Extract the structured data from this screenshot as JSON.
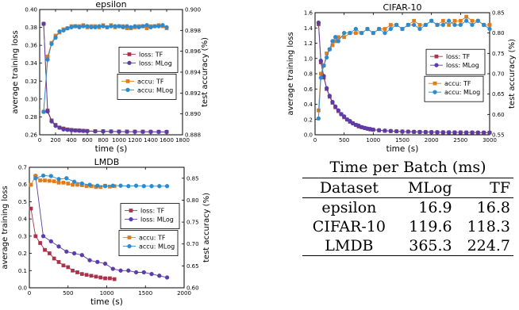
{
  "chart_data": [
    {
      "type": "line",
      "title": "epsilon",
      "xlabel": "time (s)",
      "ylabel": "average training loss",
      "y2label": "test accuracy (%)",
      "xlim": [
        0,
        1800
      ],
      "ylim": [
        0.26,
        0.4
      ],
      "y2lim": [
        0.888,
        0.9
      ],
      "xticks": [
        0,
        200,
        400,
        600,
        800,
        1000,
        1200,
        1400,
        1600,
        1800
      ],
      "yticks": [
        0.26,
        0.28,
        0.3,
        0.32,
        0.34,
        0.36,
        0.38,
        0.4
      ],
      "y2ticks": [
        0.888,
        0.89,
        0.892,
        0.894,
        0.896,
        0.898,
        0.9
      ],
      "ytick_labels": [
        "0.26",
        "0.28",
        "0.30",
        "0.32",
        "0.34",
        "0.36",
        "0.38",
        "0.40"
      ],
      "y2tick_labels": [
        "0.888",
        "0.890",
        "0.892",
        "0.894",
        "0.896",
        "0.898",
        "0.900"
      ],
      "legend_loss": "right",
      "legend_accu": "right",
      "series": [
        {
          "name": "loss: TF",
          "axis": "left",
          "color": "#a8334a",
          "marker": "square",
          "x": [
            50,
            100,
            150,
            200,
            250,
            300,
            350,
            400,
            450,
            500,
            550,
            600,
            700,
            800,
            900,
            1000,
            1100,
            1200,
            1300,
            1400,
            1500,
            1600
          ],
          "y": [
            0.384,
            0.287,
            0.276,
            0.271,
            0.268,
            0.267,
            0.266,
            0.2655,
            0.265,
            0.2648,
            0.2645,
            0.2643,
            0.264,
            0.264,
            0.2638,
            0.2637,
            0.2636,
            0.2635,
            0.2635,
            0.2634,
            0.2634,
            0.2633
          ]
        },
        {
          "name": "loss: MLog",
          "axis": "left",
          "color": "#5a3da8",
          "marker": "circle",
          "x": [
            50,
            100,
            150,
            200,
            250,
            300,
            350,
            400,
            450,
            500,
            550,
            600,
            700,
            800,
            900,
            1000,
            1100,
            1200,
            1300,
            1400,
            1500,
            1600
          ],
          "y": [
            0.384,
            0.286,
            0.275,
            0.27,
            0.268,
            0.266,
            0.2655,
            0.265,
            0.2648,
            0.2645,
            0.2643,
            0.264,
            0.2638,
            0.2637,
            0.2636,
            0.2635,
            0.2634,
            0.2634,
            0.2633,
            0.2633,
            0.2632,
            0.2632
          ]
        },
        {
          "name": "accu: TF",
          "axis": "right",
          "color": "#e07b1a",
          "marker": "square",
          "x": [
            50,
            100,
            150,
            200,
            250,
            300,
            350,
            400,
            450,
            500,
            550,
            600,
            650,
            700,
            750,
            800,
            850,
            900,
            950,
            1000,
            1050,
            1100,
            1150,
            1200,
            1250,
            1300,
            1350,
            1400,
            1450,
            1500,
            1550,
            1600
          ],
          "y": [
            0.8902,
            0.8955,
            0.8968,
            0.8975,
            0.8978,
            0.8981,
            0.8982,
            0.8984,
            0.8984,
            0.8984,
            0.8985,
            0.8983,
            0.8984,
            0.8984,
            0.8983,
            0.8985,
            0.8983,
            0.8985,
            0.8983,
            0.8984,
            0.8984,
            0.8982,
            0.8982,
            0.8983,
            0.8984,
            0.8984,
            0.8982,
            0.8984,
            0.8984,
            0.8985,
            0.8984,
            0.8982
          ]
        },
        {
          "name": "accu: MLog",
          "axis": "right",
          "color": "#2b8ad0",
          "marker": "circle",
          "x": [
            50,
            100,
            150,
            200,
            250,
            300,
            350,
            400,
            450,
            500,
            550,
            600,
            650,
            700,
            750,
            800,
            850,
            900,
            950,
            1000,
            1050,
            1100,
            1150,
            1200,
            1250,
            1300,
            1350,
            1400,
            1450,
            1500,
            1550,
            1600
          ],
          "y": [
            0.8902,
            0.8952,
            0.8967,
            0.8973,
            0.8979,
            0.898,
            0.8982,
            0.8983,
            0.8984,
            0.8983,
            0.8984,
            0.8984,
            0.8983,
            0.8983,
            0.8984,
            0.8984,
            0.8983,
            0.8984,
            0.8984,
            0.8984,
            0.8983,
            0.8984,
            0.8983,
            0.8984,
            0.8983,
            0.8984,
            0.8985,
            0.8983,
            0.8984,
            0.8984,
            0.8985,
            0.8983
          ]
        }
      ]
    },
    {
      "type": "line",
      "title": "CIFAR-10",
      "xlabel": "time (s)",
      "ylabel": "average training loss",
      "y2label": "test accuracy (%)",
      "xlim": [
        0,
        3000
      ],
      "ylim": [
        0.0,
        1.6
      ],
      "y2lim": [
        0.55,
        0.85
      ],
      "xticks": [
        0,
        500,
        1000,
        1500,
        2000,
        2500,
        3000
      ],
      "yticks": [
        0.0,
        0.2,
        0.4,
        0.6,
        0.8,
        1.0,
        1.2,
        1.4,
        1.6
      ],
      "y2ticks": [
        0.55,
        0.6,
        0.65,
        0.7,
        0.75,
        0.8,
        0.85
      ],
      "ytick_labels": [
        "0.0",
        "0.2",
        "0.4",
        "0.6",
        "0.8",
        "1.0",
        "1.2",
        "1.4",
        "1.6"
      ],
      "y2tick_labels": [
        "0.55",
        "0.60",
        "0.65",
        "0.70",
        "0.75",
        "0.80",
        "0.85"
      ],
      "legend_loss": "right",
      "legend_accu": "right",
      "series": [
        {
          "name": "loss: TF",
          "axis": "left",
          "color": "#a8334a",
          "marker": "square",
          "x": [
            60,
            100,
            150,
            200,
            250,
            300,
            350,
            400,
            450,
            500,
            550,
            600,
            650,
            700,
            750,
            800,
            850,
            900,
            950,
            1000,
            1100,
            1200,
            1300,
            1400,
            1500,
            1600,
            1700,
            1800,
            1900,
            2000,
            2100,
            2200,
            2300,
            2400,
            2500,
            2600,
            2700,
            2800,
            2900,
            3000
          ],
          "y": [
            1.45,
            0.95,
            0.75,
            0.6,
            0.5,
            0.42,
            0.36,
            0.31,
            0.27,
            0.23,
            0.2,
            0.17,
            0.15,
            0.13,
            0.11,
            0.1,
            0.09,
            0.08,
            0.07,
            0.065,
            0.058,
            0.052,
            0.048,
            0.045,
            0.042,
            0.04,
            0.038,
            0.036,
            0.035,
            0.034,
            0.033,
            0.032,
            0.031,
            0.03,
            0.03,
            0.029,
            0.029,
            0.028,
            0.028,
            0.028
          ]
        },
        {
          "name": "loss: MLog",
          "axis": "left",
          "color": "#5a3da8",
          "marker": "circle",
          "x": [
            60,
            100,
            150,
            200,
            250,
            300,
            350,
            400,
            450,
            500,
            550,
            600,
            650,
            700,
            750,
            800,
            850,
            900,
            950,
            1000,
            1100,
            1200,
            1300,
            1400,
            1500,
            1600,
            1700,
            1800,
            1900,
            2000,
            2100,
            2200,
            2300,
            2400,
            2500,
            2600,
            2700,
            2800,
            2900,
            3000
          ],
          "y": [
            1.47,
            0.97,
            0.77,
            0.61,
            0.51,
            0.43,
            0.37,
            0.32,
            0.27,
            0.24,
            0.2,
            0.18,
            0.15,
            0.13,
            0.12,
            0.1,
            0.09,
            0.08,
            0.075,
            0.067,
            0.06,
            0.054,
            0.05,
            0.046,
            0.043,
            0.041,
            0.039,
            0.037,
            0.036,
            0.035,
            0.034,
            0.033,
            0.032,
            0.031,
            0.031,
            0.03,
            0.03,
            0.029,
            0.029,
            0.029
          ]
        },
        {
          "name": "accu: TF",
          "axis": "right",
          "color": "#e07b1a",
          "marker": "square",
          "x": [
            60,
            100,
            150,
            200,
            250,
            300,
            350,
            400,
            500,
            600,
            700,
            800,
            900,
            1000,
            1100,
            1200,
            1300,
            1400,
            1500,
            1600,
            1700,
            1800,
            1900,
            2000,
            2100,
            2200,
            2300,
            2400,
            2500,
            2600,
            2700,
            2800,
            2900,
            3000
          ],
          "y": [
            0.61,
            0.7,
            0.72,
            0.75,
            0.76,
            0.77,
            0.78,
            0.79,
            0.79,
            0.8,
            0.8,
            0.8,
            0.81,
            0.8,
            0.81,
            0.81,
            0.82,
            0.82,
            0.81,
            0.82,
            0.83,
            0.82,
            0.82,
            0.83,
            0.82,
            0.83,
            0.82,
            0.83,
            0.83,
            0.84,
            0.83,
            0.83,
            0.82,
            0.82
          ]
        },
        {
          "name": "accu: MLog",
          "axis": "right",
          "color": "#2b8ad0",
          "marker": "circle",
          "x": [
            60,
            100,
            150,
            200,
            250,
            300,
            350,
            400,
            500,
            600,
            700,
            800,
            900,
            1000,
            1100,
            1200,
            1300,
            1400,
            1500,
            1600,
            1700,
            1800,
            1900,
            2000,
            2100,
            2200,
            2300,
            2400,
            2500,
            2600,
            2700,
            2800,
            2900,
            3000
          ],
          "y": [
            0.59,
            0.69,
            0.72,
            0.74,
            0.76,
            0.78,
            0.79,
            0.78,
            0.8,
            0.8,
            0.81,
            0.8,
            0.81,
            0.8,
            0.81,
            0.8,
            0.81,
            0.82,
            0.81,
            0.82,
            0.82,
            0.81,
            0.82,
            0.83,
            0.82,
            0.82,
            0.83,
            0.82,
            0.82,
            0.83,
            0.82,
            0.83,
            0.82,
            0.81
          ]
        }
      ]
    },
    {
      "type": "line",
      "title": "LMDB",
      "xlabel": "time (s)",
      "ylabel": "average training loss",
      "y2label": "test accuracy (%)",
      "xlim": [
        0,
        2000
      ],
      "ylim": [
        0.0,
        0.7
      ],
      "y2lim": [
        0.6,
        0.875
      ],
      "xticks": [
        0,
        500,
        1000,
        1500,
        2000
      ],
      "yticks": [
        0.0,
        0.1,
        0.2,
        0.3,
        0.4,
        0.5,
        0.6,
        0.7
      ],
      "y2ticks": [
        0.6,
        0.65,
        0.7,
        0.75,
        0.8,
        0.85
      ],
      "ytick_labels": [
        "0.0",
        "0.1",
        "0.2",
        "0.3",
        "0.4",
        "0.5",
        "0.6",
        "0.7"
      ],
      "y2tick_labels": [
        "0.60",
        "0.65",
        "0.70",
        "0.75",
        "0.80",
        "0.85"
      ],
      "legend_loss": "right",
      "legend_accu": "right",
      "series": [
        {
          "name": "loss: TF",
          "axis": "left",
          "color": "#a8334a",
          "marker": "square",
          "x": [
            20,
            80,
            140,
            200,
            260,
            320,
            380,
            440,
            500,
            560,
            620,
            680,
            740,
            800,
            860,
            920,
            980,
            1040,
            1100
          ],
          "y": [
            0.46,
            0.3,
            0.26,
            0.22,
            0.2,
            0.17,
            0.15,
            0.13,
            0.12,
            0.1,
            0.09,
            0.08,
            0.075,
            0.07,
            0.065,
            0.06,
            0.055,
            0.055,
            0.05
          ]
        },
        {
          "name": "loss: MLog",
          "axis": "left",
          "color": "#5a3da8",
          "marker": "circle",
          "x": [
            80,
            180,
            280,
            380,
            480,
            580,
            680,
            780,
            880,
            980,
            1080,
            1180,
            1280,
            1380,
            1480,
            1580,
            1680,
            1780
          ],
          "y": [
            0.65,
            0.3,
            0.27,
            0.24,
            0.21,
            0.2,
            0.19,
            0.16,
            0.15,
            0.14,
            0.11,
            0.1,
            0.1,
            0.09,
            0.09,
            0.08,
            0.07,
            0.06
          ]
        },
        {
          "name": "accu: TF",
          "axis": "right",
          "color": "#e07b1a",
          "marker": "square",
          "x": [
            20,
            80,
            140,
            200,
            260,
            320,
            380,
            440,
            500,
            560,
            620,
            680,
            740,
            800,
            860,
            920,
            980,
            1040,
            1100
          ],
          "y": [
            0.835,
            0.855,
            0.845,
            0.845,
            0.844,
            0.843,
            0.84,
            0.84,
            0.838,
            0.835,
            0.835,
            0.834,
            0.832,
            0.832,
            0.83,
            0.83,
            0.833,
            0.831,
            0.832
          ]
        },
        {
          "name": "accu: MLog",
          "axis": "right",
          "color": "#2b8ad0",
          "marker": "circle",
          "x": [
            80,
            180,
            280,
            380,
            480,
            580,
            680,
            780,
            880,
            980,
            1080,
            1180,
            1280,
            1380,
            1480,
            1580,
            1680,
            1780
          ],
          "y": [
            0.85,
            0.856,
            0.855,
            0.848,
            0.85,
            0.842,
            0.838,
            0.835,
            0.833,
            0.832,
            0.833,
            0.833,
            0.832,
            0.833,
            0.832,
            0.832,
            0.832,
            0.832
          ]
        }
      ]
    },
    {
      "type": "table",
      "title": "Time per Batch (ms)",
      "columns": [
        "Dataset",
        "MLog",
        "TF"
      ],
      "rows": [
        [
          "epsilon",
          "16.9",
          "16.8"
        ],
        [
          "CIFAR-10",
          "119.6",
          "118.3"
        ],
        [
          "LMDB",
          "365.3",
          "224.7"
        ]
      ]
    }
  ]
}
